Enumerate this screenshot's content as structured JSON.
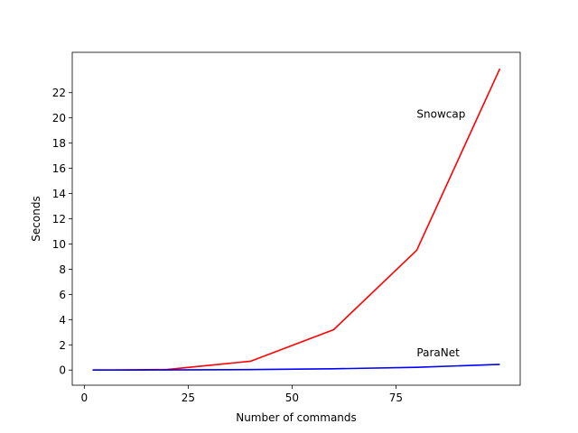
{
  "chart_data": {
    "type": "line",
    "xlabel": "Number of commands",
    "ylabel": "Seconds",
    "xlim": [
      -2.9,
      104.9
    ],
    "ylim": [
      -1.2,
      25.2
    ],
    "xticks": [
      0,
      25,
      50,
      75
    ],
    "yticks": [
      0,
      2,
      4,
      6,
      8,
      10,
      12,
      14,
      16,
      18,
      20,
      22
    ],
    "grid": false,
    "series": [
      {
        "name": "Snowcap",
        "color": "#ff0000",
        "x": [
          2,
          10,
          20,
          40,
          60,
          80,
          100
        ],
        "y": [
          0.0,
          0.01,
          0.05,
          0.7,
          3.2,
          9.5,
          23.9
        ]
      },
      {
        "name": "ParaNet",
        "color": "#0000ff",
        "x": [
          2,
          10,
          20,
          40,
          60,
          80,
          100
        ],
        "y": [
          0.0,
          0.0,
          0.01,
          0.04,
          0.1,
          0.22,
          0.45
        ]
      }
    ],
    "annotations": [
      {
        "text": "Snowcap",
        "x": 80,
        "y": 20.0
      },
      {
        "text": "ParaNet",
        "x": 80,
        "y": 1.1
      }
    ]
  }
}
